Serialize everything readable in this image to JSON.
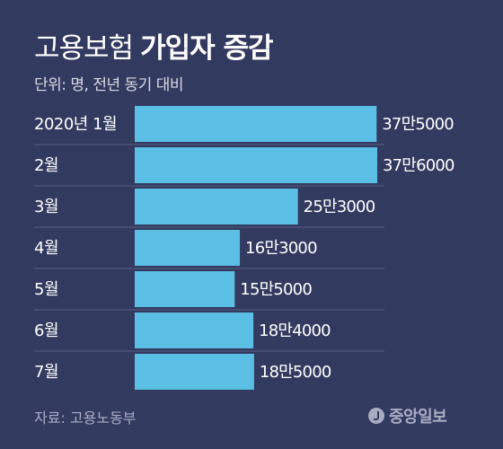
{
  "title": {
    "light": "고용보험",
    "bold": "가입자 증감"
  },
  "unit_note": "단위: 명, 전년 동기 대비",
  "source": "자료: 고용노동부",
  "logo_text": "중앙일보",
  "colors": {
    "background": "#333a5f",
    "bar": "#5bbee5",
    "divider": "#5a6088"
  },
  "chart_data": {
    "type": "bar",
    "orientation": "horizontal",
    "categories": [
      "2020년 1월",
      "2월",
      "3월",
      "4월",
      "5월",
      "6월",
      "7월"
    ],
    "values": [
      375000,
      376000,
      253000,
      163000,
      155000,
      184000,
      185000
    ],
    "value_labels": [
      "37만5000",
      "37만6000",
      "25만3000",
      "16만3000",
      "15만5000",
      "18만4000",
      "18만5000"
    ],
    "xlim": [
      0,
      376000
    ],
    "grid": false,
    "legend": "none"
  }
}
